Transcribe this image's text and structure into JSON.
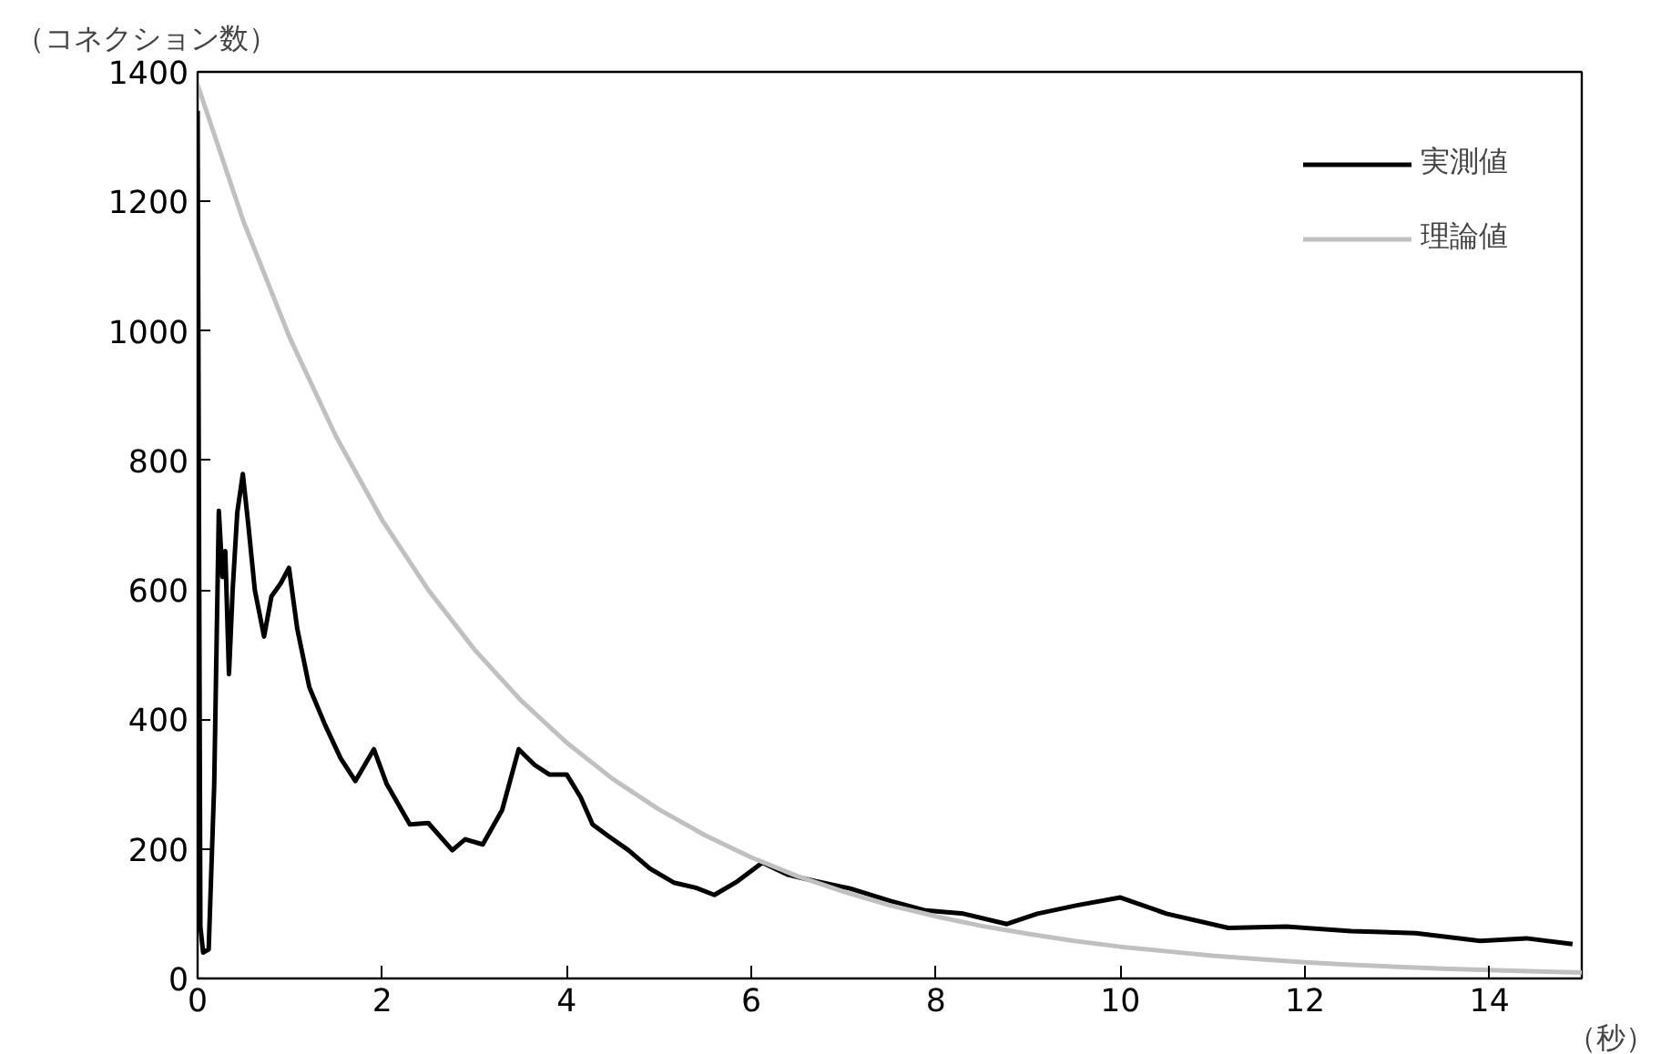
{
  "chart_data": {
    "type": "line",
    "xlabel": "（秒）",
    "ylabel": "（コネクション数）",
    "xlim": [
      0,
      15
    ],
    "ylim": [
      0,
      1400
    ],
    "xticks": [
      0,
      2,
      4,
      6,
      8,
      10,
      12,
      14
    ],
    "yticks": [
      0,
      200,
      400,
      600,
      800,
      1000,
      1200,
      1400
    ],
    "grid": false,
    "legend": "top right",
    "marker": "none",
    "line_style": "solid",
    "series": [
      {
        "name": "実測値",
        "color": "#000000",
        "x": [
          0,
          0.03,
          0.06,
          0.12,
          0.18,
          0.23,
          0.27,
          0.3,
          0.34,
          0.38,
          0.43,
          0.49,
          0.55,
          0.62,
          0.72,
          0.8,
          0.9,
          0.99,
          1.08,
          1.21,
          1.38,
          1.55,
          1.71,
          1.91,
          2.05,
          2.3,
          2.5,
          2.76,
          2.9,
          3.09,
          3.3,
          3.48,
          3.65,
          3.81,
          4.0,
          4.15,
          4.28,
          4.45,
          4.67,
          4.9,
          5.16,
          5.4,
          5.6,
          5.85,
          6.12,
          6.4,
          6.7,
          7.07,
          7.5,
          7.89,
          8.3,
          8.77,
          9.1,
          9.53,
          10.0,
          10.5,
          11.17,
          11.8,
          12.5,
          13.2,
          13.9,
          14.4,
          14.9
        ],
        "values": [
          1340,
          80,
          40,
          45,
          300,
          722,
          620,
          660,
          470,
          600,
          720,
          779,
          700,
          600,
          528,
          590,
          610,
          634,
          540,
          450,
          392,
          340,
          305,
          354,
          300,
          238,
          240,
          198,
          215,
          207,
          260,
          354,
          330,
          315,
          315,
          280,
          238,
          220,
          198,
          170,
          148,
          140,
          129,
          150,
          179,
          160,
          150,
          139,
          120,
          105,
          100,
          84,
          100,
          113,
          125,
          100,
          78,
          80,
          73,
          70,
          58,
          62,
          53
        ]
      },
      {
        "name": "理論値",
        "color": "#c0c0c0",
        "x": [
          0,
          0.5,
          1,
          1.5,
          2,
          2.5,
          3,
          3.5,
          4,
          4.5,
          5,
          5.5,
          6,
          6.5,
          7,
          7.5,
          8,
          8.5,
          9,
          9.5,
          10,
          10.5,
          11,
          11.5,
          12,
          12.5,
          13,
          13.5,
          14,
          14.5,
          15
        ],
        "values": [
          1380,
          1168,
          989,
          837,
          708,
          600,
          508,
          430,
          364,
          308,
          261,
          221,
          187,
          158,
          134,
          113,
          96,
          81,
          69,
          58,
          49,
          42,
          35,
          30,
          25,
          21,
          18,
          15,
          13,
          11,
          9
        ]
      }
    ]
  }
}
